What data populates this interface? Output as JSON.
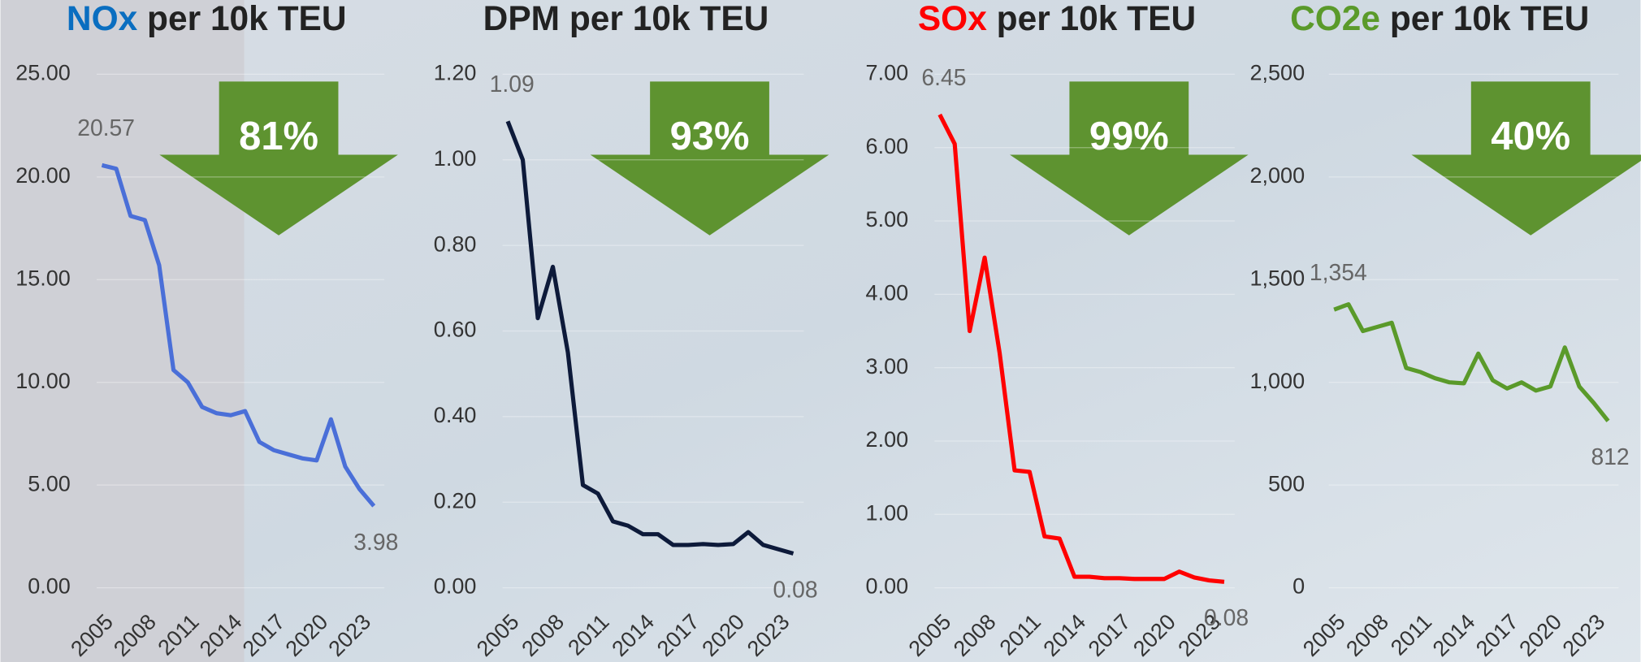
{
  "chart_data": [
    {
      "type": "line",
      "pollutant": "NOx",
      "title": "per 10k TEU",
      "pollutant_color": "#0a6ec0",
      "annotation": "81%",
      "x": [
        2005,
        2006,
        2007,
        2008,
        2009,
        2010,
        2011,
        2012,
        2013,
        2014,
        2015,
        2016,
        2017,
        2018,
        2019,
        2020,
        2021,
        2022,
        2023,
        2024
      ],
      "xlim": [
        2005,
        2024
      ],
      "xticks": [
        2005,
        2008,
        2011,
        2014,
        2017,
        2020,
        2023
      ],
      "ylim": [
        0,
        25
      ],
      "yticks": [
        {
          "value": 0,
          "label": "0.00"
        },
        {
          "value": 5,
          "label": "5.00"
        },
        {
          "value": 10,
          "label": "10.00"
        },
        {
          "value": 15,
          "label": "15.00"
        },
        {
          "value": 20,
          "label": "20.00"
        },
        {
          "value": 25,
          "label": "25.00"
        }
      ],
      "series": [
        {
          "name": "NOx",
          "color": "#4a6fd8",
          "values": [
            20.57,
            20.4,
            18.1,
            17.9,
            15.7,
            10.6,
            10.0,
            8.8,
            8.5,
            8.4,
            8.6,
            7.1,
            6.7,
            6.5,
            6.3,
            6.2,
            8.2,
            5.9,
            4.8,
            3.98
          ],
          "value_labels": [
            "20.57",
            null,
            null,
            null,
            null,
            null,
            null,
            null,
            null,
            null,
            null,
            null,
            null,
            null,
            null,
            null,
            null,
            null,
            null,
            "3.98"
          ]
        }
      ]
    },
    {
      "type": "line",
      "pollutant": "DPM",
      "title": "per 10k TEU",
      "pollutant_color": "#222222",
      "annotation": "93%",
      "x": [
        2005,
        2006,
        2007,
        2008,
        2009,
        2010,
        2011,
        2012,
        2013,
        2014,
        2015,
        2016,
        2017,
        2018,
        2019,
        2020,
        2021,
        2022,
        2023,
        2024
      ],
      "xlim": [
        2005,
        2024
      ],
      "xticks": [
        2005,
        2008,
        2011,
        2014,
        2017,
        2020,
        2023
      ],
      "ylim": [
        0,
        1.2
      ],
      "yticks": [
        {
          "value": 0,
          "label": "0.00"
        },
        {
          "value": 0.2,
          "label": "0.20"
        },
        {
          "value": 0.4,
          "label": "0.40"
        },
        {
          "value": 0.6,
          "label": "0.60"
        },
        {
          "value": 0.8,
          "label": "0.80"
        },
        {
          "value": 1,
          "label": "1.00"
        },
        {
          "value": 1.2,
          "label": "1.20"
        }
      ],
      "series": [
        {
          "name": "DPM",
          "color": "#0d1a3a",
          "values": [
            1.09,
            1.0,
            0.63,
            0.75,
            0.55,
            0.24,
            0.22,
            0.155,
            0.145,
            0.125,
            0.125,
            0.1,
            0.1,
            0.102,
            0.1,
            0.102,
            0.13,
            0.1,
            0.09,
            0.08
          ],
          "value_labels": [
            "1.09",
            null,
            null,
            null,
            null,
            null,
            null,
            null,
            null,
            null,
            null,
            null,
            null,
            null,
            null,
            null,
            null,
            null,
            null,
            "0.08"
          ]
        }
      ]
    },
    {
      "type": "line",
      "pollutant": "SOx",
      "title": "per 10k TEU",
      "pollutant_color": "#ff0000",
      "annotation": "99%",
      "x": [
        2005,
        2006,
        2007,
        2008,
        2009,
        2010,
        2011,
        2012,
        2013,
        2014,
        2015,
        2016,
        2017,
        2018,
        2019,
        2020,
        2021,
        2022,
        2023,
        2024
      ],
      "xlim": [
        2005,
        2024
      ],
      "xticks": [
        2005,
        2008,
        2011,
        2014,
        2017,
        2020,
        2023
      ],
      "ylim": [
        0,
        7
      ],
      "yticks": [
        {
          "value": 0,
          "label": "0.00"
        },
        {
          "value": 1,
          "label": "1.00"
        },
        {
          "value": 2,
          "label": "2.00"
        },
        {
          "value": 3,
          "label": "3.00"
        },
        {
          "value": 4,
          "label": "4.00"
        },
        {
          "value": 5,
          "label": "5.00"
        },
        {
          "value": 6,
          "label": "6.00"
        },
        {
          "value": 7,
          "label": "7.00"
        }
      ],
      "series": [
        {
          "name": "SOx",
          "color": "#ff0000",
          "values": [
            6.45,
            6.05,
            3.5,
            4.5,
            3.2,
            1.6,
            1.58,
            0.7,
            0.67,
            0.15,
            0.15,
            0.13,
            0.13,
            0.12,
            0.12,
            0.12,
            0.22,
            0.14,
            0.1,
            0.08
          ],
          "value_labels": [
            "6.45",
            null,
            null,
            null,
            null,
            null,
            null,
            null,
            null,
            null,
            null,
            null,
            null,
            null,
            null,
            null,
            null,
            null,
            null,
            "0.08"
          ]
        }
      ]
    },
    {
      "type": "line",
      "pollutant": "CO2e",
      "title": "per 10k TEU",
      "pollutant_color": "#5a9a2a",
      "annotation": "40%",
      "x": [
        2005,
        2006,
        2007,
        2008,
        2009,
        2010,
        2011,
        2012,
        2013,
        2014,
        2015,
        2016,
        2017,
        2018,
        2019,
        2020,
        2021,
        2022,
        2023,
        2024
      ],
      "xlim": [
        2005,
        2024
      ],
      "xticks": [
        2005,
        2008,
        2011,
        2014,
        2017,
        2020,
        2023
      ],
      "ylim": [
        0,
        2500
      ],
      "yticks": [
        0,
        500,
        {
          "value": 1000,
          "label": "1,000"
        },
        {
          "value": 1500,
          "label": "1,500"
        },
        {
          "value": 2000,
          "label": "2,000"
        },
        {
          "value": 2500,
          "label": "2,500"
        }
      ],
      "series": [
        {
          "name": "CO2e",
          "color": "#5a9a2a",
          "values": [
            1354,
            1380,
            1250,
            1270,
            1290,
            1070,
            1050,
            1020,
            1000,
            995,
            1140,
            1010,
            970,
            1000,
            960,
            980,
            1170,
            980,
            900,
            812
          ],
          "value_labels": [
            "1,354",
            null,
            null,
            null,
            null,
            null,
            null,
            null,
            null,
            null,
            null,
            null,
            null,
            null,
            null,
            null,
            null,
            null,
            null,
            "812"
          ]
        }
      ]
    }
  ]
}
